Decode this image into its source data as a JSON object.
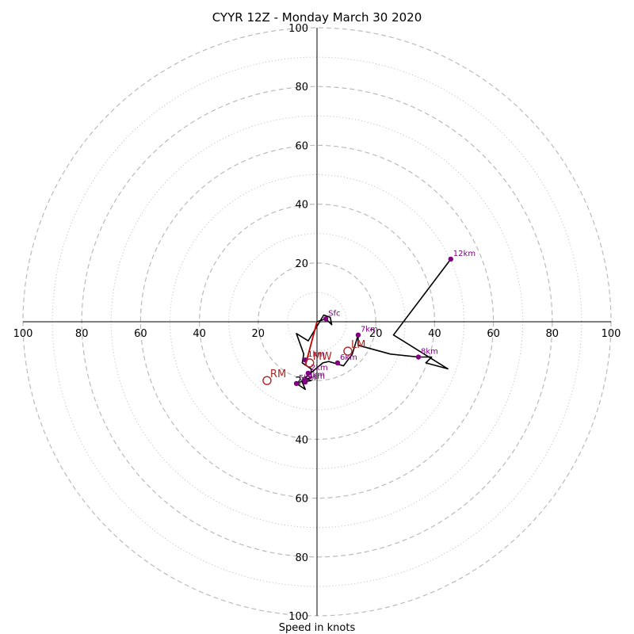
{
  "chart_data": {
    "type": "scatter",
    "title": "CYYR 12Z - Monday March 30 2020",
    "xlabel": "Speed in knots",
    "ylabel": "",
    "xlim": [
      -100,
      100
    ],
    "ylim": [
      -100,
      100
    ],
    "grid": true,
    "ring_major": [
      20,
      40,
      60,
      80,
      100
    ],
    "ring_minor": [
      10,
      30,
      50,
      70,
      90
    ],
    "x_tick_labels": [
      "100",
      "80",
      "60",
      "40",
      "20",
      "20",
      "40",
      "60",
      "80",
      "100"
    ],
    "x_tick_values": [
      -100,
      -80,
      -60,
      -40,
      -20,
      20,
      40,
      60,
      80,
      100
    ],
    "y_tick_labels": [
      "100",
      "80",
      "60",
      "40",
      "20",
      "20",
      "40",
      "60",
      "80",
      "100"
    ],
    "y_tick_values": [
      100,
      80,
      60,
      40,
      20,
      -20,
      -40,
      -60,
      -80,
      -100
    ],
    "hodograph_trace": [
      [
        0,
        0
      ],
      [
        3,
        1
      ],
      [
        5,
        -1
      ],
      [
        4.5,
        1.5
      ],
      [
        2.3,
        2.3
      ],
      [
        -3,
        -6.5
      ],
      [
        -7,
        -4
      ],
      [
        -4.5,
        -11
      ],
      [
        -5,
        -14
      ],
      [
        -2,
        -16
      ],
      [
        -2,
        -19
      ],
      [
        -7,
        -21
      ],
      [
        -4,
        -23
      ],
      [
        -5,
        -20.5
      ],
      [
        -2,
        -20
      ],
      [
        -4,
        -19
      ],
      [
        2,
        -14
      ],
      [
        4,
        -13.5
      ],
      [
        9,
        -15
      ],
      [
        12,
        -11
      ],
      [
        14,
        -4.5
      ],
      [
        14,
        -8
      ],
      [
        25,
        -11
      ],
      [
        34.5,
        -12
      ],
      [
        39,
        -12
      ],
      [
        37,
        -14
      ],
      [
        44.5,
        -16
      ],
      [
        26,
        -4.5
      ],
      [
        45.5,
        21.3
      ]
    ],
    "shear_vector": [
      [
        0,
        0
      ],
      [
        -4,
        -15
      ]
    ],
    "height_points": [
      {
        "label": "Sfc",
        "x": 3,
        "y": 1
      },
      {
        "label": "1km",
        "x": -4,
        "y": -13
      },
      {
        "label": "2km",
        "x": -3,
        "y": -17.5
      },
      {
        "label": "3km",
        "x": -4,
        "y": -20
      },
      {
        "label": "4km",
        "x": -4,
        "y": -20.5
      },
      {
        "label": "5km",
        "x": -7,
        "y": -21
      },
      {
        "label": "6km",
        "x": 7,
        "y": -14
      },
      {
        "label": "7km",
        "x": 14,
        "y": -4.5
      },
      {
        "label": "8km",
        "x": 34.5,
        "y": -12
      },
      {
        "label": "12km",
        "x": 45.5,
        "y": 21.3
      }
    ],
    "motion_markers": [
      {
        "label": "RM",
        "x": -17,
        "y": -20
      },
      {
        "label": "LM",
        "x": 10.5,
        "y": -10
      },
      {
        "label": "MW",
        "x": -2.5,
        "y": -14
      }
    ],
    "colors": {
      "trace": "#000000",
      "shear": "#cc0000",
      "height_points": "#800080",
      "motion": "#b22222",
      "grid": "#bbbbbb",
      "axes": "#000000"
    }
  }
}
